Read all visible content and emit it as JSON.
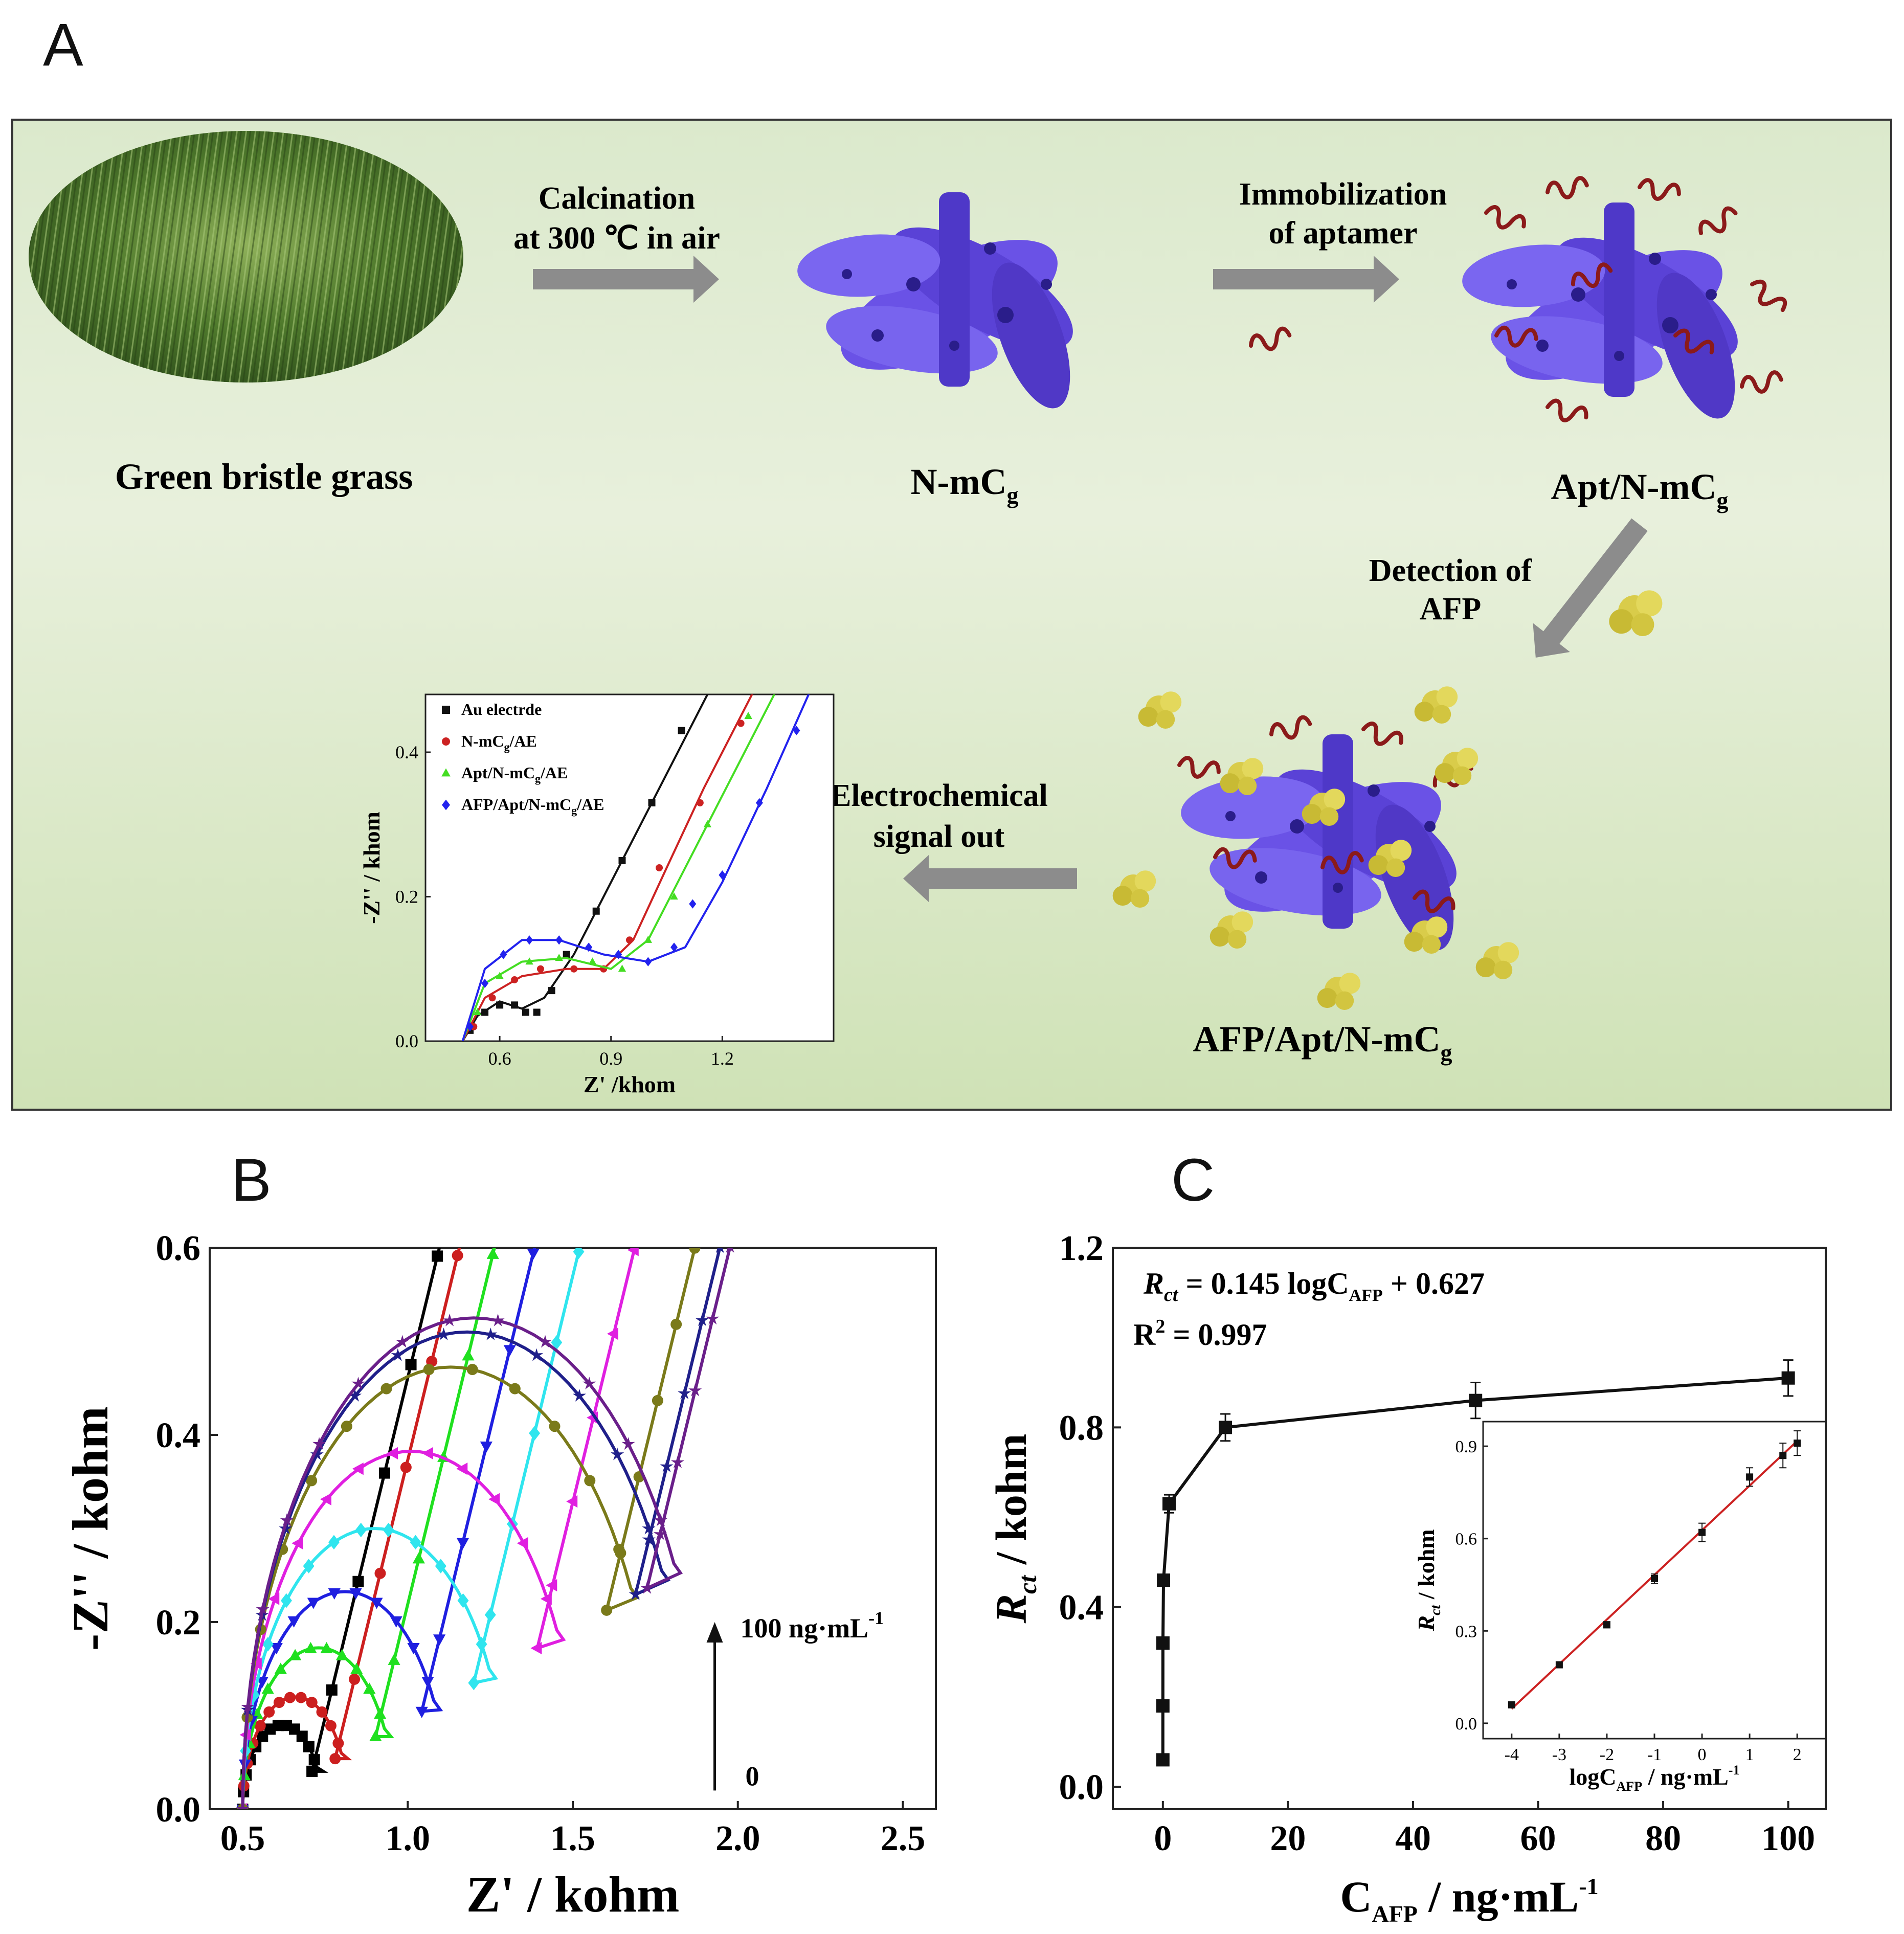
{
  "panel_labels": {
    "a": "A",
    "b": "B",
    "c": "C"
  },
  "scheme": {
    "grass_label": "Green bristle grass",
    "step1_line1": "Calcination",
    "step1_line2": "at 300 ℃ in air",
    "nmcg_label": "N-mC",
    "nmcg_sub": "g",
    "step2_line1": "Immobilization",
    "step2_line2": "of aptamer",
    "aptnmcg_label": "Apt/N-mC",
    "aptnmcg_sub": "g",
    "step3_line1": "Detection of",
    "step3_line2": "AFP",
    "afpaptnmcg_label": "AFP/Apt/N-mC",
    "afpaptnmcg_sub": "g",
    "step4_line1": "Electrochemical",
    "step4_line2": "signal out",
    "colors": {
      "carbon": "#6a52e6",
      "aptamer": "#8b1a1a",
      "afp": "#d9cc4a",
      "arrow": "#8c8c8c"
    }
  },
  "chart_data": [
    {
      "panel": "A-inset",
      "type": "scatter",
      "xlabel": "Z' /khom",
      "ylabel": "-Z'' / khom",
      "xlim": [
        0.4,
        1.5
      ],
      "ylim": [
        0,
        0.48
      ],
      "xticks": [
        0.6,
        0.9,
        1.2
      ],
      "yticks": [
        0.0,
        0.2,
        0.4
      ],
      "xtick_labels": [
        "0.6",
        "0.9",
        "1.2"
      ],
      "ytick_labels": [
        "0.0",
        "0.2",
        "0.4"
      ],
      "legend": [
        {
          "label": "Au electrde",
          "color": "#111111",
          "marker": "square"
        },
        {
          "label": "N-mC",
          "label_sub": "g",
          "label_suffix": "/AE",
          "color": "#cc2222",
          "marker": "circle"
        },
        {
          "label": "Apt/N-mC",
          "label_sub": "g",
          "label_suffix": "/AE",
          "color": "#44dd22",
          "marker": "triangle"
        },
        {
          "label": "AFP/Apt/N-mC",
          "label_sub": "g",
          "label_suffix": "/AE",
          "color": "#2222ee",
          "marker": "diamond"
        }
      ],
      "series": [
        {
          "color": "#111111",
          "fit": [
            [
              0.5,
              0
            ],
            [
              0.54,
              0.035
            ],
            [
              0.6,
              0.055
            ],
            [
              0.66,
              0.045
            ],
            [
              0.72,
              0.06
            ],
            [
              0.8,
              0.12
            ],
            [
              0.9,
              0.22
            ],
            [
              1.0,
              0.32
            ],
            [
              1.1,
              0.42
            ],
            [
              1.17,
              0.49
            ]
          ],
          "points": [
            [
              0.52,
              0.015
            ],
            [
              0.56,
              0.04
            ],
            [
              0.6,
              0.05
            ],
            [
              0.64,
              0.05
            ],
            [
              0.67,
              0.04
            ],
            [
              0.7,
              0.04
            ],
            [
              0.74,
              0.07
            ],
            [
              0.78,
              0.12
            ],
            [
              0.86,
              0.18
            ],
            [
              0.93,
              0.25
            ],
            [
              1.01,
              0.33
            ],
            [
              1.09,
              0.43
            ]
          ]
        },
        {
          "color": "#cc2222",
          "fit": [
            [
              0.5,
              0
            ],
            [
              0.56,
              0.06
            ],
            [
              0.66,
              0.09
            ],
            [
              0.78,
              0.1
            ],
            [
              0.88,
              0.1
            ],
            [
              0.96,
              0.14
            ],
            [
              1.05,
              0.24
            ],
            [
              1.15,
              0.35
            ],
            [
              1.3,
              0.5
            ]
          ],
          "points": [
            [
              0.53,
              0.02
            ],
            [
              0.58,
              0.06
            ],
            [
              0.64,
              0.085
            ],
            [
              0.71,
              0.1
            ],
            [
              0.8,
              0.1
            ],
            [
              0.88,
              0.1
            ],
            [
              0.95,
              0.14
            ],
            [
              1.03,
              0.24
            ],
            [
              1.14,
              0.33
            ],
            [
              1.25,
              0.44
            ]
          ]
        },
        {
          "color": "#44dd22",
          "fit": [
            [
              0.5,
              0
            ],
            [
              0.56,
              0.08
            ],
            [
              0.66,
              0.11
            ],
            [
              0.78,
              0.115
            ],
            [
              0.9,
              0.1
            ],
            [
              1.0,
              0.14
            ],
            [
              1.1,
              0.24
            ],
            [
              1.22,
              0.36
            ],
            [
              1.36,
              0.5
            ]
          ],
          "points": [
            [
              0.54,
              0.04
            ],
            [
              0.6,
              0.09
            ],
            [
              0.68,
              0.11
            ],
            [
              0.76,
              0.115
            ],
            [
              0.85,
              0.11
            ],
            [
              0.93,
              0.1
            ],
            [
              1.0,
              0.14
            ],
            [
              1.07,
              0.2
            ],
            [
              1.16,
              0.3
            ],
            [
              1.27,
              0.45
            ]
          ]
        },
        {
          "color": "#2222ee",
          "fit": [
            [
              0.5,
              0
            ],
            [
              0.56,
              0.1
            ],
            [
              0.66,
              0.14
            ],
            [
              0.76,
              0.14
            ],
            [
              0.88,
              0.12
            ],
            [
              1.0,
              0.11
            ],
            [
              1.1,
              0.13
            ],
            [
              1.2,
              0.22
            ],
            [
              1.32,
              0.35
            ],
            [
              1.45,
              0.5
            ]
          ],
          "points": [
            [
              0.52,
              0.02
            ],
            [
              0.56,
              0.08
            ],
            [
              0.61,
              0.12
            ],
            [
              0.68,
              0.14
            ],
            [
              0.76,
              0.14
            ],
            [
              0.84,
              0.13
            ],
            [
              0.92,
              0.12
            ],
            [
              1.0,
              0.11
            ],
            [
              1.07,
              0.13
            ],
            [
              1.12,
              0.19
            ],
            [
              1.2,
              0.23
            ],
            [
              1.3,
              0.33
            ],
            [
              1.4,
              0.43
            ]
          ]
        }
      ]
    },
    {
      "panel": "B",
      "type": "scatter",
      "xlabel": "Z' / kohm",
      "ylabel": "-Z'' / kohm",
      "xlim": [
        0.4,
        2.6
      ],
      "ylim": [
        0,
        0.6
      ],
      "xticks": [
        0.5,
        1.0,
        1.5,
        2.0,
        2.5
      ],
      "yticks": [
        0.0,
        0.2,
        0.4,
        0.6
      ],
      "xtick_labels": [
        "0.5",
        "1.0",
        "1.5",
        "2.0",
        "2.5"
      ],
      "ytick_labels": [
        "0.0",
        "0.2",
        "0.4",
        "0.6"
      ],
      "arrow_top_label": "100 ng·mL",
      "arrow_top_sup": "-1",
      "arrow_bottom_label": "0",
      "arrow_x": 1.93,
      "arrow_y": [
        0.02,
        0.2
      ],
      "series": [
        {
          "color": "#000000",
          "marker": "square",
          "r": 0.12,
          "x0": 0.5,
          "slope": 1.45
        },
        {
          "color": "#cc1f1f",
          "marker": "circle",
          "r": 0.16,
          "x0": 0.5,
          "slope": 1.45
        },
        {
          "color": "#1fe01f",
          "marker": "triangle",
          "r": 0.23,
          "x0": 0.5,
          "slope": 1.45
        },
        {
          "color": "#1f1fe0",
          "marker": "tri-down",
          "r": 0.31,
          "x0": 0.5,
          "slope": 1.45
        },
        {
          "color": "#2fe5ee",
          "marker": "diamond",
          "r": 0.4,
          "x0": 0.5,
          "slope": 1.45
        },
        {
          "color": "#e01fe0",
          "marker": "tri-left",
          "r": 0.51,
          "x0": 0.5,
          "slope": 1.45
        },
        {
          "color": "#7a7a1a",
          "marker": "circle",
          "r": 0.63,
          "x0": 0.5,
          "slope": 1.45
        },
        {
          "color": "#1f1f8a",
          "marker": "star",
          "r": 0.68,
          "x0": 0.5,
          "slope": 1.45
        },
        {
          "color": "#6a1f8a",
          "marker": "star",
          "r": 0.7,
          "x0": 0.5,
          "slope": 1.45
        }
      ]
    },
    {
      "panel": "C",
      "type": "line",
      "xlabel": "C",
      "xlabel_sub": "AFP",
      "xlabel_suffix": " / ng·mL",
      "xlabel_sup": "-1",
      "ylabel": "R",
      "ylabel_sub": "ct",
      "ylabel_suffix": " / kohm",
      "xlim": [
        -8,
        106
      ],
      "ylim": [
        -0.05,
        1.2
      ],
      "xticks": [
        0,
        20,
        40,
        60,
        80,
        100
      ],
      "yticks": [
        0.0,
        0.4,
        0.8,
        1.2
      ],
      "xtick_labels": [
        "0",
        "20",
        "40",
        "60",
        "80",
        "100"
      ],
      "ytick_labels": [
        "0.0",
        "0.4",
        "0.8",
        "1.2"
      ],
      "equation_R": "R",
      "equation_R_sub": "ct",
      "equation_rest": " = 0.145 logC",
      "equation_C_sub": "AFP",
      "equation_tail": " + 0.627",
      "r2_text": "R",
      "r2_sup": "2",
      "r2_value": " = 0.997",
      "x": [
        0.0001,
        0.001,
        0.01,
        0.1,
        1,
        10,
        50,
        100
      ],
      "y": [
        0.06,
        0.18,
        0.32,
        0.46,
        0.63,
        0.8,
        0.86,
        0.91
      ],
      "err": [
        0.005,
        0.005,
        0.005,
        0.01,
        0.02,
        0.03,
        0.04,
        0.04
      ],
      "inset": {
        "type": "scatter",
        "xlabel": "logC",
        "xlabel_sub": "AFP",
        "xlabel_suffix": " / ng·mL",
        "xlabel_sup": "-1",
        "ylabel": "R",
        "ylabel_sub": "ct",
        "ylabel_suffix": " / kohm",
        "xlim": [
          -4.6,
          2.6
        ],
        "ylim": [
          -0.05,
          0.98
        ],
        "xticks": [
          -4,
          -3,
          -2,
          -1,
          0,
          1,
          2
        ],
        "yticks": [
          0.0,
          0.3,
          0.6,
          0.9
        ],
        "xtick_labels": [
          "-4",
          "-3",
          "-2",
          "-1",
          "0",
          "1",
          "2"
        ],
        "ytick_labels": [
          "0.0",
          "0.3",
          "0.6",
          "0.9"
        ],
        "x": [
          -4,
          -3,
          -2,
          -1,
          0,
          1,
          1.7,
          2
        ],
        "y": [
          0.06,
          0.19,
          0.32,
          0.47,
          0.62,
          0.8,
          0.87,
          0.91
        ],
        "err": [
          0.005,
          0.005,
          0.01,
          0.015,
          0.03,
          0.03,
          0.04,
          0.04
        ],
        "fit": {
          "slope": 0.145,
          "intercept": 0.627,
          "color": "#cc2222"
        }
      }
    }
  ]
}
